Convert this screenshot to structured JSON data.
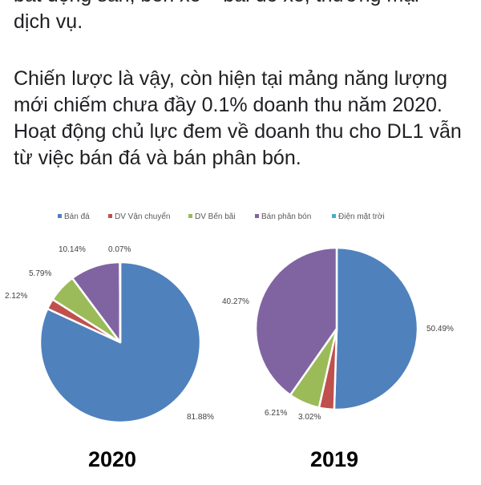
{
  "article": {
    "paragraph_top": "bất động sản, bến xe – bãi đỗ xe, thương mại – dịch vụ.",
    "paragraph_main": "Chiến lược là vậy, còn hiện tại mảng năng lượng mới chiếm chưa đầy 0.1% doanh thu năm 2020. Hoạt động chủ lực đem về doanh thu cho DL1 vẫn từ việc bán đá và bán phân bón."
  },
  "chart_data": {
    "type": "pie",
    "legend": [
      {
        "name": "Bán đá",
        "color": "#4f81bd"
      },
      {
        "name": "DV Vận chuyển",
        "color": "#c0504d"
      },
      {
        "name": "DV Bến bãi",
        "color": "#9bbb59"
      },
      {
        "name": "Bán phân bón",
        "color": "#8064a2"
      },
      {
        "name": "Điện mặt trời",
        "color": "#4bacc6"
      }
    ],
    "legend_position": "top",
    "charts": [
      {
        "title": "2020",
        "values": [
          81.88,
          2.12,
          5.79,
          10.14,
          0.07
        ],
        "labels": [
          "81.88%",
          "2.12%",
          "5.79%",
          "10.14%",
          "0.07%"
        ]
      },
      {
        "title": "2019",
        "values": [
          50.49,
          3.02,
          6.21,
          40.27,
          0
        ],
        "labels": [
          "50.49%",
          "3.02%",
          "6.21%",
          "40.27%",
          ""
        ]
      }
    ]
  }
}
